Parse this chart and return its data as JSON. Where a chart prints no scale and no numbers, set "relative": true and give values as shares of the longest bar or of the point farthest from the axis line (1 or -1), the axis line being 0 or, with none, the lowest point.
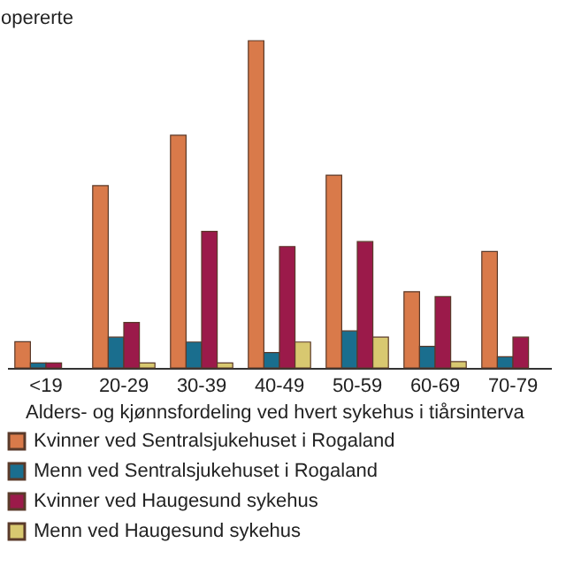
{
  "chart_data": {
    "type": "bar",
    "relative": true,
    "ylabel": "opererte",
    "xlabel": "Alders- og kjønnsfordeling ved hvert sykehus i tiårsinterva",
    "categories": [
      "<19",
      "20-29",
      "30-39",
      "40-49",
      "50-59",
      "60-69",
      "70-79"
    ],
    "series": [
      {
        "name": "Kvinner ved Sentralsjukehuset i Rogaland",
        "color": "#d97a4a",
        "values": [
          0.08,
          0.557,
          0.711,
          1,
          0.589,
          0.233,
          0.356
        ]
      },
      {
        "name": "Menn ved Sentralsjukehuset i Rogaland",
        "color": "#1a6e8e",
        "values": [
          0.015,
          0.094,
          0.079,
          0.047,
          0.113,
          0.066,
          0.034
        ]
      },
      {
        "name": "Kvinner ved Haugesund sykehus",
        "color": "#9b1a4a",
        "values": [
          0.015,
          0.139,
          0.417,
          0.371,
          0.386,
          0.218,
          0.094
        ]
      },
      {
        "name": "Menn ved Haugesund sykehus",
        "color": "#d8c870",
        "values": [
          null,
          0.015,
          0.015,
          0.079,
          0.094,
          0.019,
          null
        ]
      }
    ],
    "legend": "bottom",
    "grid": false
  }
}
